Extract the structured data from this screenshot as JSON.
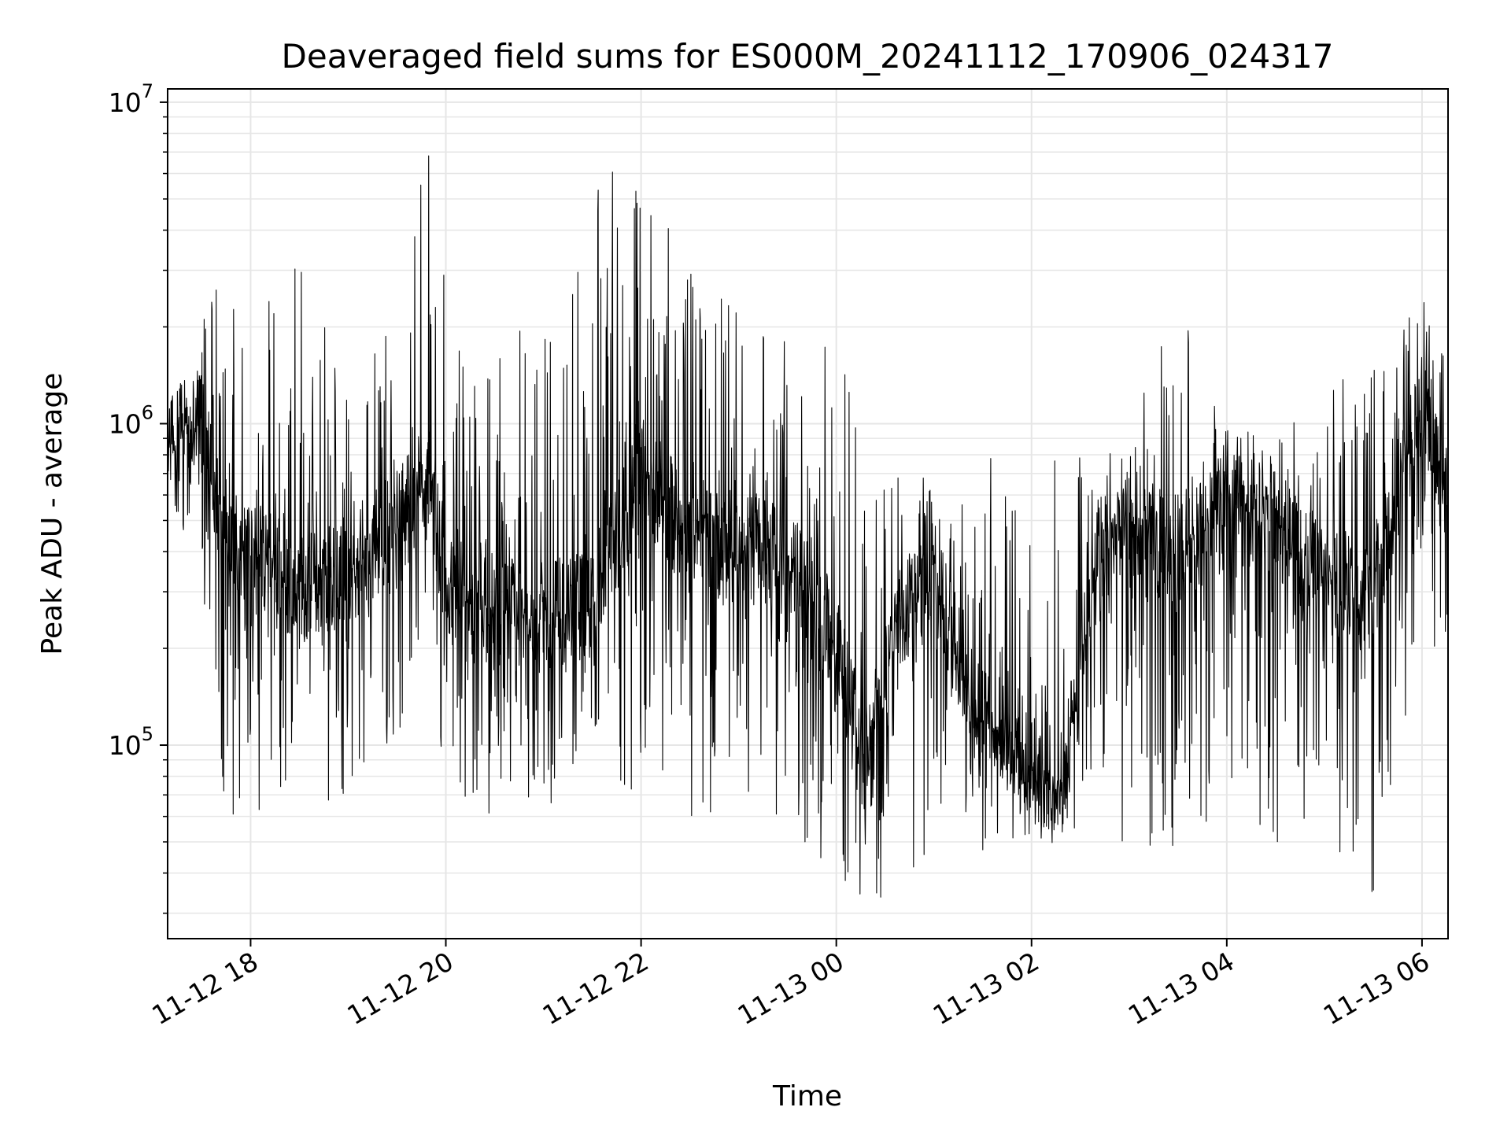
{
  "chart_data": {
    "type": "line",
    "title": "Deaveraged field sums for ES000M_20241112_170906_024317",
    "xlabel": "Time",
    "ylabel": "Peak ADU - average",
    "yscale": "log",
    "ylim": [
      25000,
      11000000
    ],
    "xlim": [
      "2024-11-12 17:09",
      "2024-11-13 06:16"
    ],
    "grid": true,
    "line_color": "#000000",
    "grid_color": "#e6e6e6",
    "x_ticks": [
      {
        "value": "2024-11-12 18:00",
        "label": "11-12 18"
      },
      {
        "value": "2024-11-12 20:00",
        "label": "11-12 20"
      },
      {
        "value": "2024-11-12 22:00",
        "label": "11-12 22"
      },
      {
        "value": "2024-11-13 00:00",
        "label": "11-13 00"
      },
      {
        "value": "2024-11-13 02:00",
        "label": "11-13 02"
      },
      {
        "value": "2024-11-13 04:00",
        "label": "11-13 04"
      },
      {
        "value": "2024-11-13 06:00",
        "label": "11-13 06"
      }
    ],
    "y_ticks": [
      {
        "value": 100000,
        "base": "10",
        "exp": "5"
      },
      {
        "value": 1000000,
        "base": "10",
        "exp": "6"
      },
      {
        "value": 10000000,
        "base": "10",
        "exp": "7"
      }
    ],
    "series": [
      {
        "x": [
          "2024-11-12 17:09",
          "2024-11-12 17:30",
          "2024-11-12 17:45",
          "2024-11-12 18:00",
          "2024-11-12 18:30",
          "2024-11-12 19:00",
          "2024-11-12 19:30",
          "2024-11-12 19:50",
          "2024-11-12 20:00",
          "2024-11-12 20:30",
          "2024-11-12 21:00",
          "2024-11-12 21:30",
          "2024-11-12 22:00",
          "2024-11-12 22:30",
          "2024-11-12 23:00",
          "2024-11-12 23:30",
          "2024-11-13 00:00",
          "2024-11-13 00:20",
          "2024-11-13 00:40",
          "2024-11-13 01:00",
          "2024-11-13 01:30",
          "2024-11-13 02:00",
          "2024-11-13 02:20",
          "2024-11-13 02:40",
          "2024-11-13 03:00",
          "2024-11-13 03:30",
          "2024-11-13 04:00",
          "2024-11-13 04:30",
          "2024-11-13 05:00",
          "2024-11-13 05:30",
          "2024-11-13 06:00",
          "2024-11-13 06:16"
        ],
        "y": [
          850000,
          1000000,
          450000,
          400000,
          300000,
          350000,
          500000,
          650000,
          300000,
          260000,
          250000,
          280000,
          700000,
          450000,
          420000,
          380000,
          200000,
          80000,
          250000,
          320000,
          120000,
          85000,
          75000,
          380000,
          420000,
          400000,
          550000,
          500000,
          330000,
          280000,
          1200000,
          550000
        ],
        "y_high": [
          1050000,
          3000000,
          2400000,
          2600000,
          3400000,
          1800000,
          3500000,
          8200000,
          3500000,
          1500000,
          3000000,
          6200000,
          6000000,
          3000000,
          2300000,
          1800000,
          2500000,
          700000,
          750000,
          730000,
          800000,
          850000,
          900000,
          900000,
          950000,
          2500000,
          980000,
          900000,
          1600000,
          1500000,
          2700000,
          1900000
        ],
        "y_low": [
          650000,
          300000,
          60000,
          60000,
          55000,
          65000,
          95000,
          280000,
          60000,
          55000,
          60000,
          110000,
          50000,
          40000,
          70000,
          55000,
          38000,
          30000,
          40000,
          42000,
          45000,
          52000,
          48000,
          60000,
          45000,
          48000,
          55000,
          50000,
          48000,
          34000,
          230000,
          150000
        ]
      }
    ]
  }
}
